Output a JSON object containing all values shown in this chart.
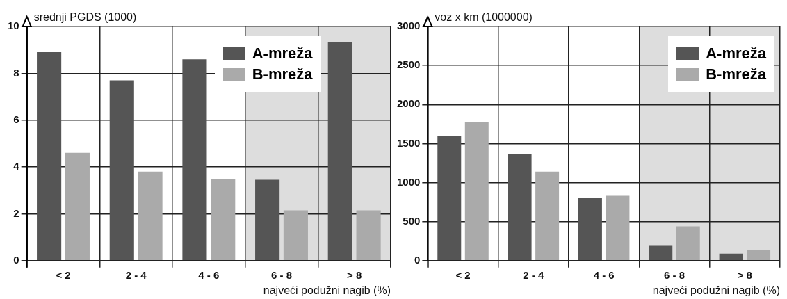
{
  "chart_data": [
    {
      "type": "bar",
      "ylabel": "srednji PGDS (1000)",
      "xlabel": "najveći podužni nagib (%)",
      "categories": [
        "< 2",
        "2 - 4",
        "4 - 6",
        "6 - 8",
        "> 8"
      ],
      "series": [
        {
          "name": "A-mreža",
          "color": "#555555",
          "values": [
            8.9,
            7.7,
            8.6,
            3.45,
            9.35
          ]
        },
        {
          "name": "B-mreža",
          "color": "#aaaaaa",
          "values": [
            4.6,
            3.8,
            3.5,
            2.15,
            2.15
          ]
        }
      ],
      "ylim": [
        0,
        10
      ],
      "yticks": [
        0,
        2,
        4,
        6,
        8,
        10
      ],
      "grid": true,
      "legend": "top",
      "bands": [
        {
          "axis": "x",
          "from": "6 - 8",
          "to": "> 8",
          "color": "#dddddd"
        }
      ]
    },
    {
      "type": "bar",
      "ylabel": "voz x km (1000000)",
      "xlabel": "najveći podužni nagib (%)",
      "categories": [
        "< 2",
        "2 - 4",
        "4 - 6",
        "6 - 8",
        "> 8"
      ],
      "series": [
        {
          "name": "A-mreža",
          "color": "#555555",
          "values": [
            1600,
            1370,
            800,
            190,
            90
          ]
        },
        {
          "name": "B-mreža",
          "color": "#aaaaaa",
          "values": [
            1770,
            1140,
            830,
            440,
            140
          ]
        }
      ],
      "ylim": [
        0,
        3000
      ],
      "yticks": [
        0,
        500,
        1000,
        1500,
        2000,
        2500,
        3000
      ],
      "grid": true,
      "legend": "top right",
      "bands": [
        {
          "axis": "x",
          "from": "6 - 8",
          "to": "> 8",
          "color": "#dddddd"
        }
      ]
    }
  ]
}
